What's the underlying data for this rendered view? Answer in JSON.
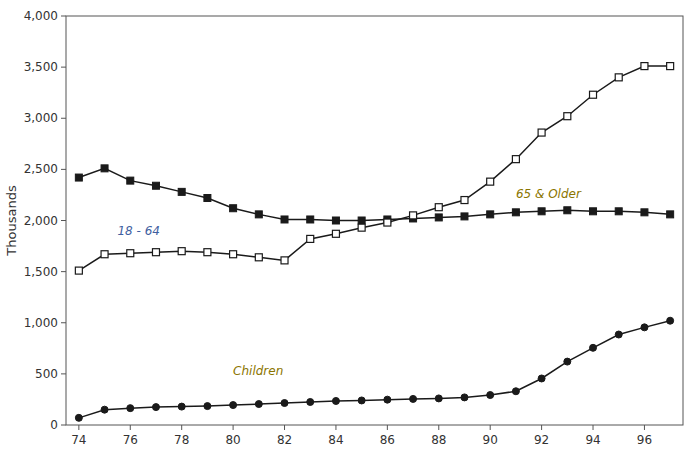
{
  "chart_data": {
    "type": "line",
    "x": [
      74,
      75,
      76,
      77,
      78,
      79,
      80,
      81,
      82,
      83,
      84,
      85,
      86,
      87,
      88,
      89,
      90,
      91,
      92,
      93,
      94,
      95,
      96,
      97
    ],
    "ylabel": "Thousands",
    "series": [
      {
        "color": "#1a1a1a",
        "marker": "square",
        "values": [
          2420,
          2510,
          2390,
          2340,
          2280,
          2220,
          2120,
          2060,
          2010,
          2010,
          2000,
          2000,
          2010,
          2020,
          2030,
          2040,
          2060,
          2080,
          2090,
          2100,
          2090,
          2090,
          2080,
          2060
        ]
      },
      {
        "color": "#1a1a1a",
        "marker": "open-square",
        "values": [
          1510,
          1670,
          1680,
          1690,
          1700,
          1690,
          1670,
          1640,
          1610,
          1820,
          1870,
          1930,
          1980,
          2050,
          2130,
          2200,
          2380,
          2600,
          2860,
          3020,
          3230,
          3400,
          3510,
          3510
        ]
      },
      {
        "color": "#1a1a1a",
        "marker": "circle",
        "values": [
          70,
          150,
          165,
          175,
          180,
          185,
          195,
          205,
          215,
          225,
          235,
          240,
          248,
          255,
          260,
          270,
          293,
          330,
          455,
          620,
          755,
          885,
          955,
          1020
        ]
      }
    ],
    "annotations": [
      {
        "text": "65 & Older",
        "x": 91.0,
        "y": 2220,
        "color": "#8B7500"
      },
      {
        "text": "18 - 64",
        "x": 75.5,
        "y": 1860,
        "color": "#4060A0"
      },
      {
        "text": "Children",
        "x": 80.0,
        "y": 490,
        "color": "#8B7500"
      }
    ],
    "xlim": [
      73.5,
      97.5
    ],
    "ylim": [
      0,
      4000
    ],
    "xticks": [
      74,
      76,
      78,
      80,
      82,
      84,
      86,
      88,
      90,
      92,
      94,
      96
    ],
    "yticks": [
      0,
      500,
      {
        "value": 1000,
        "label": "1,000"
      },
      {
        "value": 1500,
        "label": "1,500"
      },
      {
        "value": 2000,
        "label": "2,000"
      },
      {
        "value": 2500,
        "label": "2,500"
      },
      {
        "value": 3000,
        "label": "3,000"
      },
      {
        "value": 3500,
        "label": "3,500"
      },
      {
        "value": 4000,
        "label": "4,000"
      }
    ],
    "grid": false
  }
}
